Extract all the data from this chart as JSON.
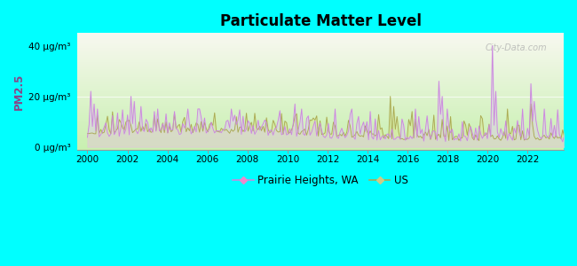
{
  "title": "Particulate Matter Level",
  "ylabel": "PM2.5",
  "ytick_labels": [
    "0 μg/m³",
    "20 μg/m³",
    "40 μg/m³"
  ],
  "ytick_values": [
    0,
    20,
    40
  ],
  "ylim": [
    -1,
    45
  ],
  "xlim": [
    1999.5,
    2023.8
  ],
  "xtick_values": [
    2000,
    2002,
    2004,
    2006,
    2008,
    2010,
    2012,
    2014,
    2016,
    2018,
    2020,
    2022
  ],
  "background_outer": "#00FFFF",
  "line_prairie_color": "#cc88dd",
  "line_us_color": "#aaaa55",
  "fill_prairie_color": "#ddc8ee",
  "fill_us_color": "#d8e898",
  "watermark": "City-Data.com",
  "legend_prairie": "Prairie Heights, WA",
  "legend_us": "US",
  "gradient_bottom": "#c8f0b0",
  "gradient_top": "#f8f8f0"
}
